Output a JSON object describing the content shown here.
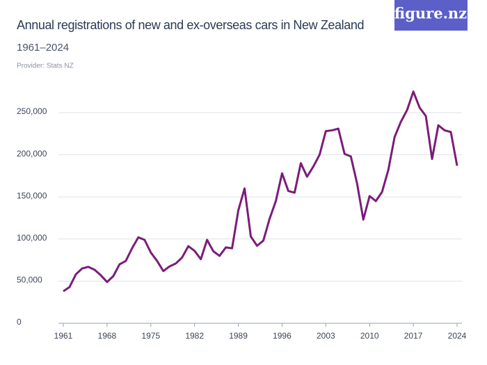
{
  "chart_data": {
    "type": "line",
    "title": "Annual registrations of new and ex-overseas cars in New Zealand",
    "subtitle": "1961–2024",
    "provider": "Provider: Stats NZ",
    "brand": "figure.nz",
    "color": "#7b1c79",
    "x": [
      1961,
      1962,
      1963,
      1964,
      1965,
      1966,
      1967,
      1968,
      1969,
      1970,
      1971,
      1972,
      1973,
      1974,
      1975,
      1976,
      1977,
      1978,
      1979,
      1980,
      1981,
      1982,
      1983,
      1984,
      1985,
      1986,
      1987,
      1988,
      1989,
      1990,
      1991,
      1992,
      1993,
      1994,
      1995,
      1996,
      1997,
      1998,
      1999,
      2000,
      2001,
      2002,
      2003,
      2004,
      2005,
      2006,
      2007,
      2008,
      2009,
      2010,
      2011,
      2012,
      2013,
      2014,
      2015,
      2016,
      2017,
      2018,
      2019,
      2020,
      2021,
      2022,
      2023,
      2024
    ],
    "values": [
      38000,
      43000,
      58000,
      65000,
      67000,
      63500,
      57000,
      49000,
      56000,
      70000,
      74000,
      89000,
      102000,
      99000,
      84000,
      74000,
      62000,
      67500,
      71000,
      78000,
      91500,
      86000,
      76000,
      99000,
      85500,
      80000,
      90000,
      89000,
      134000,
      160000,
      103000,
      92000,
      98000,
      124000,
      145000,
      178000,
      157000,
      155000,
      190000,
      174000,
      186000,
      200000,
      228000,
      229000,
      231000,
      201000,
      198000,
      166000,
      123000,
      151000,
      145000,
      156000,
      182000,
      221000,
      239000,
      253000,
      275000,
      256000,
      246000,
      195000,
      235000,
      229000,
      227000,
      187000
    ],
    "xlim": [
      1961,
      2024
    ],
    "xticks": [
      1961,
      1968,
      1975,
      1982,
      1989,
      1996,
      2003,
      2010,
      2017,
      2024
    ],
    "ylim": [
      0,
      275000
    ],
    "yticks": [
      0,
      {
        "value": 50000,
        "label": "50,000"
      },
      {
        "value": 100000,
        "label": "100,000"
      },
      {
        "value": 150000,
        "label": "150,000"
      },
      {
        "value": 200000,
        "label": "200,000"
      },
      {
        "value": 250000,
        "label": "250,000"
      }
    ],
    "grid": true
  }
}
